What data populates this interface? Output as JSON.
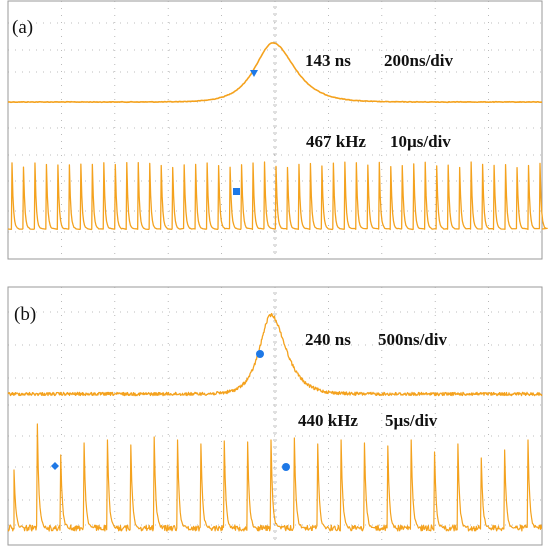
{
  "chart_data": [
    {
      "type": "line",
      "panel": "(a)",
      "description_text": [],
      "traces": [
        {
          "kind": "single-pulse",
          "pulse_width_label": "143 ns",
          "time_scale_label": "200ns/div",
          "pulse_width_ns": 143,
          "time_per_div_ns": 200,
          "trigger_marker": "triangle"
        },
        {
          "kind": "pulse-train",
          "rep_rate_label": "467 kHz",
          "time_scale_label": "10µs/div",
          "rep_rate_khz": 467,
          "time_per_div_us": 10,
          "pulse_count_visible": 47,
          "marker": "square"
        }
      ],
      "grid": true,
      "trace_color": "#F4A21E",
      "marker_color": "#1E78E6"
    },
    {
      "type": "line",
      "panel": "(b)",
      "traces": [
        {
          "kind": "single-pulse",
          "pulse_width_label": "240 ns",
          "time_scale_label": "500ns/div",
          "pulse_width_ns": 240,
          "time_per_div_ns": 500,
          "trigger_marker": "circle"
        },
        {
          "kind": "pulse-train",
          "rep_rate_label": "440 kHz",
          "time_scale_label": "5µs/div",
          "rep_rate_khz": 440,
          "time_per_div_us": 5,
          "pulse_count_visible": 23,
          "marker": "diamond"
        }
      ],
      "grid": true,
      "trace_color": "#F4A21E",
      "marker_color": "#1E78E6"
    }
  ],
  "labels": {
    "panel_a": "(a)",
    "panel_b": "(b)",
    "a_width": "143 ns",
    "a_scale_top": "200ns/div",
    "a_rate": "467 kHz",
    "a_scale_bottom": "10µs/div",
    "b_width": "240 ns",
    "b_scale_top": "500ns/div",
    "b_rate": "440 kHz",
    "b_scale_bottom": "5µs/div"
  },
  "colors": {
    "trace": "#F4A21E",
    "marker": "#1E78E6",
    "border": "#9a9a9a",
    "grid": "#a8a8a8"
  }
}
